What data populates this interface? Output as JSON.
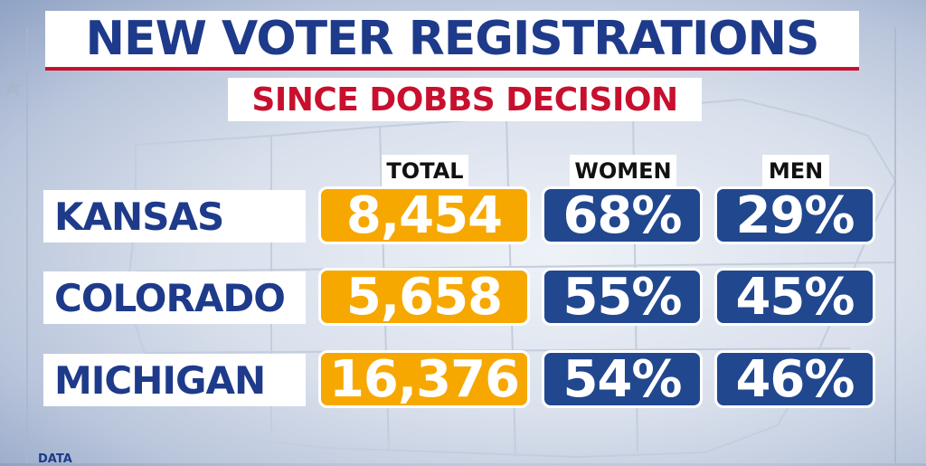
{
  "header": {
    "title": "NEW VOTER REGISTRATIONS",
    "subtitle": "SINCE DOBBS DECISION"
  },
  "columns": {
    "total": "TOTAL",
    "women": "WOMEN",
    "men": "MEN"
  },
  "rows": [
    {
      "state": "KANSAS",
      "total": "8,454",
      "women": "68%",
      "men": "29%"
    },
    {
      "state": "COLORADO",
      "total": "5,658",
      "women": "55%",
      "men": "45%"
    },
    {
      "state": "MICHIGAN",
      "total": "16,376",
      "women": "54%",
      "men": "46%"
    }
  ],
  "footer": {
    "label": "DATA"
  },
  "colors": {
    "title_blue": "#1e3a8a",
    "accent_red": "#c8102e",
    "total_gold": "#f7a800",
    "percent_blue": "#21478f"
  }
}
